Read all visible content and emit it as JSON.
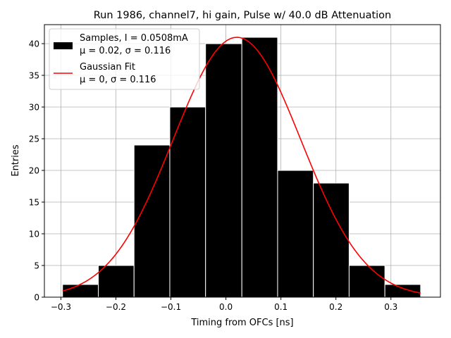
{
  "chart_data": {
    "type": "bar",
    "title": "Run 1986, channel7, hi gain, Pulse w/ 40.0 dB Attenuation",
    "xlabel": "Timing from OFCs [ns]",
    "ylabel": "Entries",
    "xlim": [
      -0.33,
      0.39
    ],
    "ylim": [
      0,
      43
    ],
    "xticks": [
      -0.3,
      -0.2,
      -0.1,
      0.0,
      0.1,
      0.2,
      0.3
    ],
    "xtick_labels": [
      "−0.3",
      "−0.2",
      "−0.1",
      "0.0",
      "0.1",
      "0.2",
      "0.3"
    ],
    "yticks": [
      0,
      5,
      10,
      15,
      20,
      25,
      30,
      35,
      40
    ],
    "ytick_labels": [
      "0",
      "5",
      "10",
      "15",
      "20",
      "25",
      "30",
      "35",
      "40"
    ],
    "grid": true,
    "legend_position": "top-left",
    "bins": [
      {
        "x0": -0.297,
        "x1": -0.232,
        "count": 2
      },
      {
        "x0": -0.232,
        "x1": -0.167,
        "count": 5
      },
      {
        "x0": -0.167,
        "x1": -0.102,
        "count": 24
      },
      {
        "x0": -0.102,
        "x1": -0.037,
        "count": 30
      },
      {
        "x0": -0.037,
        "x1": 0.029,
        "count": 40
      },
      {
        "x0": 0.029,
        "x1": 0.094,
        "count": 41
      },
      {
        "x0": 0.094,
        "x1": 0.159,
        "count": 20
      },
      {
        "x0": 0.159,
        "x1": 0.224,
        "count": 18
      },
      {
        "x0": 0.224,
        "x1": 0.289,
        "count": 5
      },
      {
        "x0": 0.289,
        "x1": 0.354,
        "count": 2
      }
    ],
    "series": [
      {
        "name": "Samples, I = 0.0508mA",
        "name_line2": "μ = 0.02, σ = 0.116",
        "kind": "histogram",
        "color": "#000000"
      },
      {
        "name": "Gaussian Fit",
        "name_line2": "μ = 0, σ = 0.116",
        "kind": "line",
        "color": "#ff0000",
        "x_range": [
          -0.297,
          0.354
        ],
        "mean": 0.02,
        "sigma": 0.116,
        "peak": 41
      }
    ]
  }
}
